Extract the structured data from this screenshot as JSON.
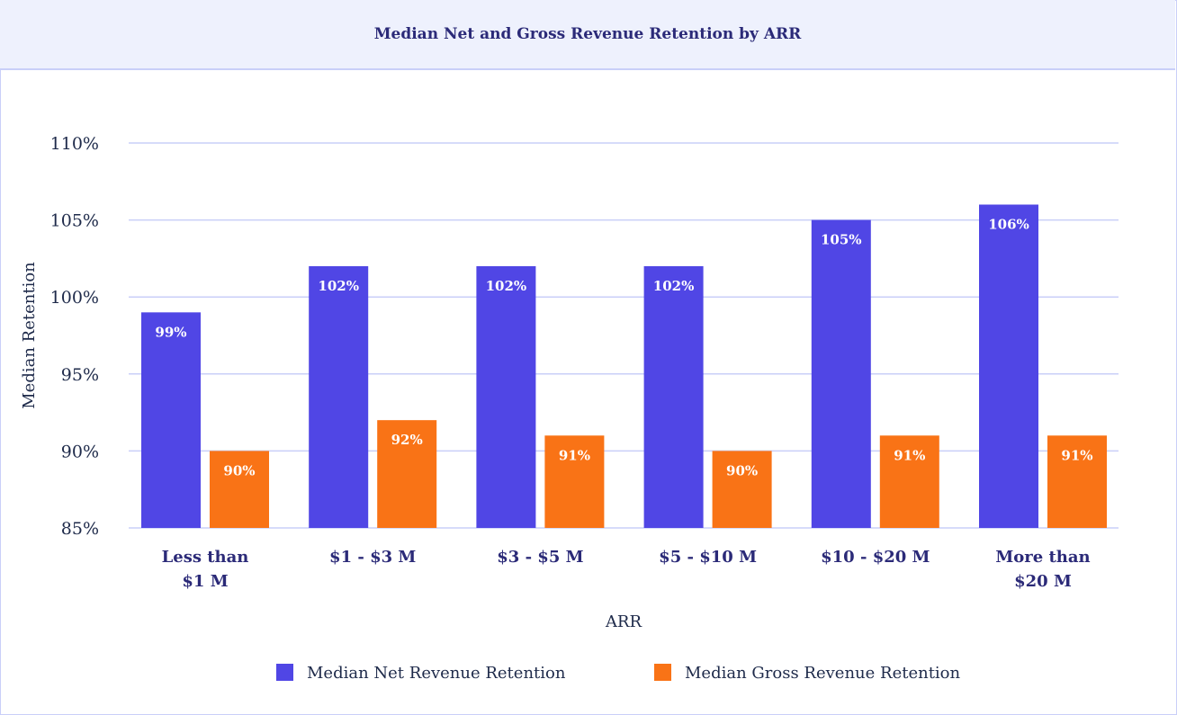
{
  "chart_data": {
    "type": "bar",
    "title": "Median Net and Gross Revenue Retention by ARR",
    "xlabel": "ARR",
    "ylabel": "Median Retention",
    "categories": [
      [
        "Less than",
        "$1 M"
      ],
      [
        "$1 - $3 M"
      ],
      [
        "$3 - $5 M"
      ],
      [
        "$5 - $10 M"
      ],
      [
        "$10 - $20 M"
      ],
      [
        "More than",
        "$20 M"
      ]
    ],
    "ylim": [
      85,
      110
    ],
    "yticks": [
      85,
      90,
      95,
      100,
      105,
      110
    ],
    "ytick_labels": [
      "85%",
      "90%",
      "95%",
      "100%",
      "105%",
      "110%"
    ],
    "grid": true,
    "legend_position": "bottom",
    "series": [
      {
        "name": "Median Net Revenue Retention",
        "color": "#5046e5",
        "values": [
          99,
          102,
          102,
          102,
          105,
          106
        ],
        "labels": [
          "99%",
          "102%",
          "102%",
          "102%",
          "105%",
          "106%"
        ]
      },
      {
        "name": "Median Gross Revenue Retention",
        "color": "#f97316",
        "values": [
          90,
          92,
          91,
          90,
          91,
          91
        ],
        "labels": [
          "90%",
          "92%",
          "91%",
          "90%",
          "91%",
          "91%"
        ]
      }
    ]
  }
}
